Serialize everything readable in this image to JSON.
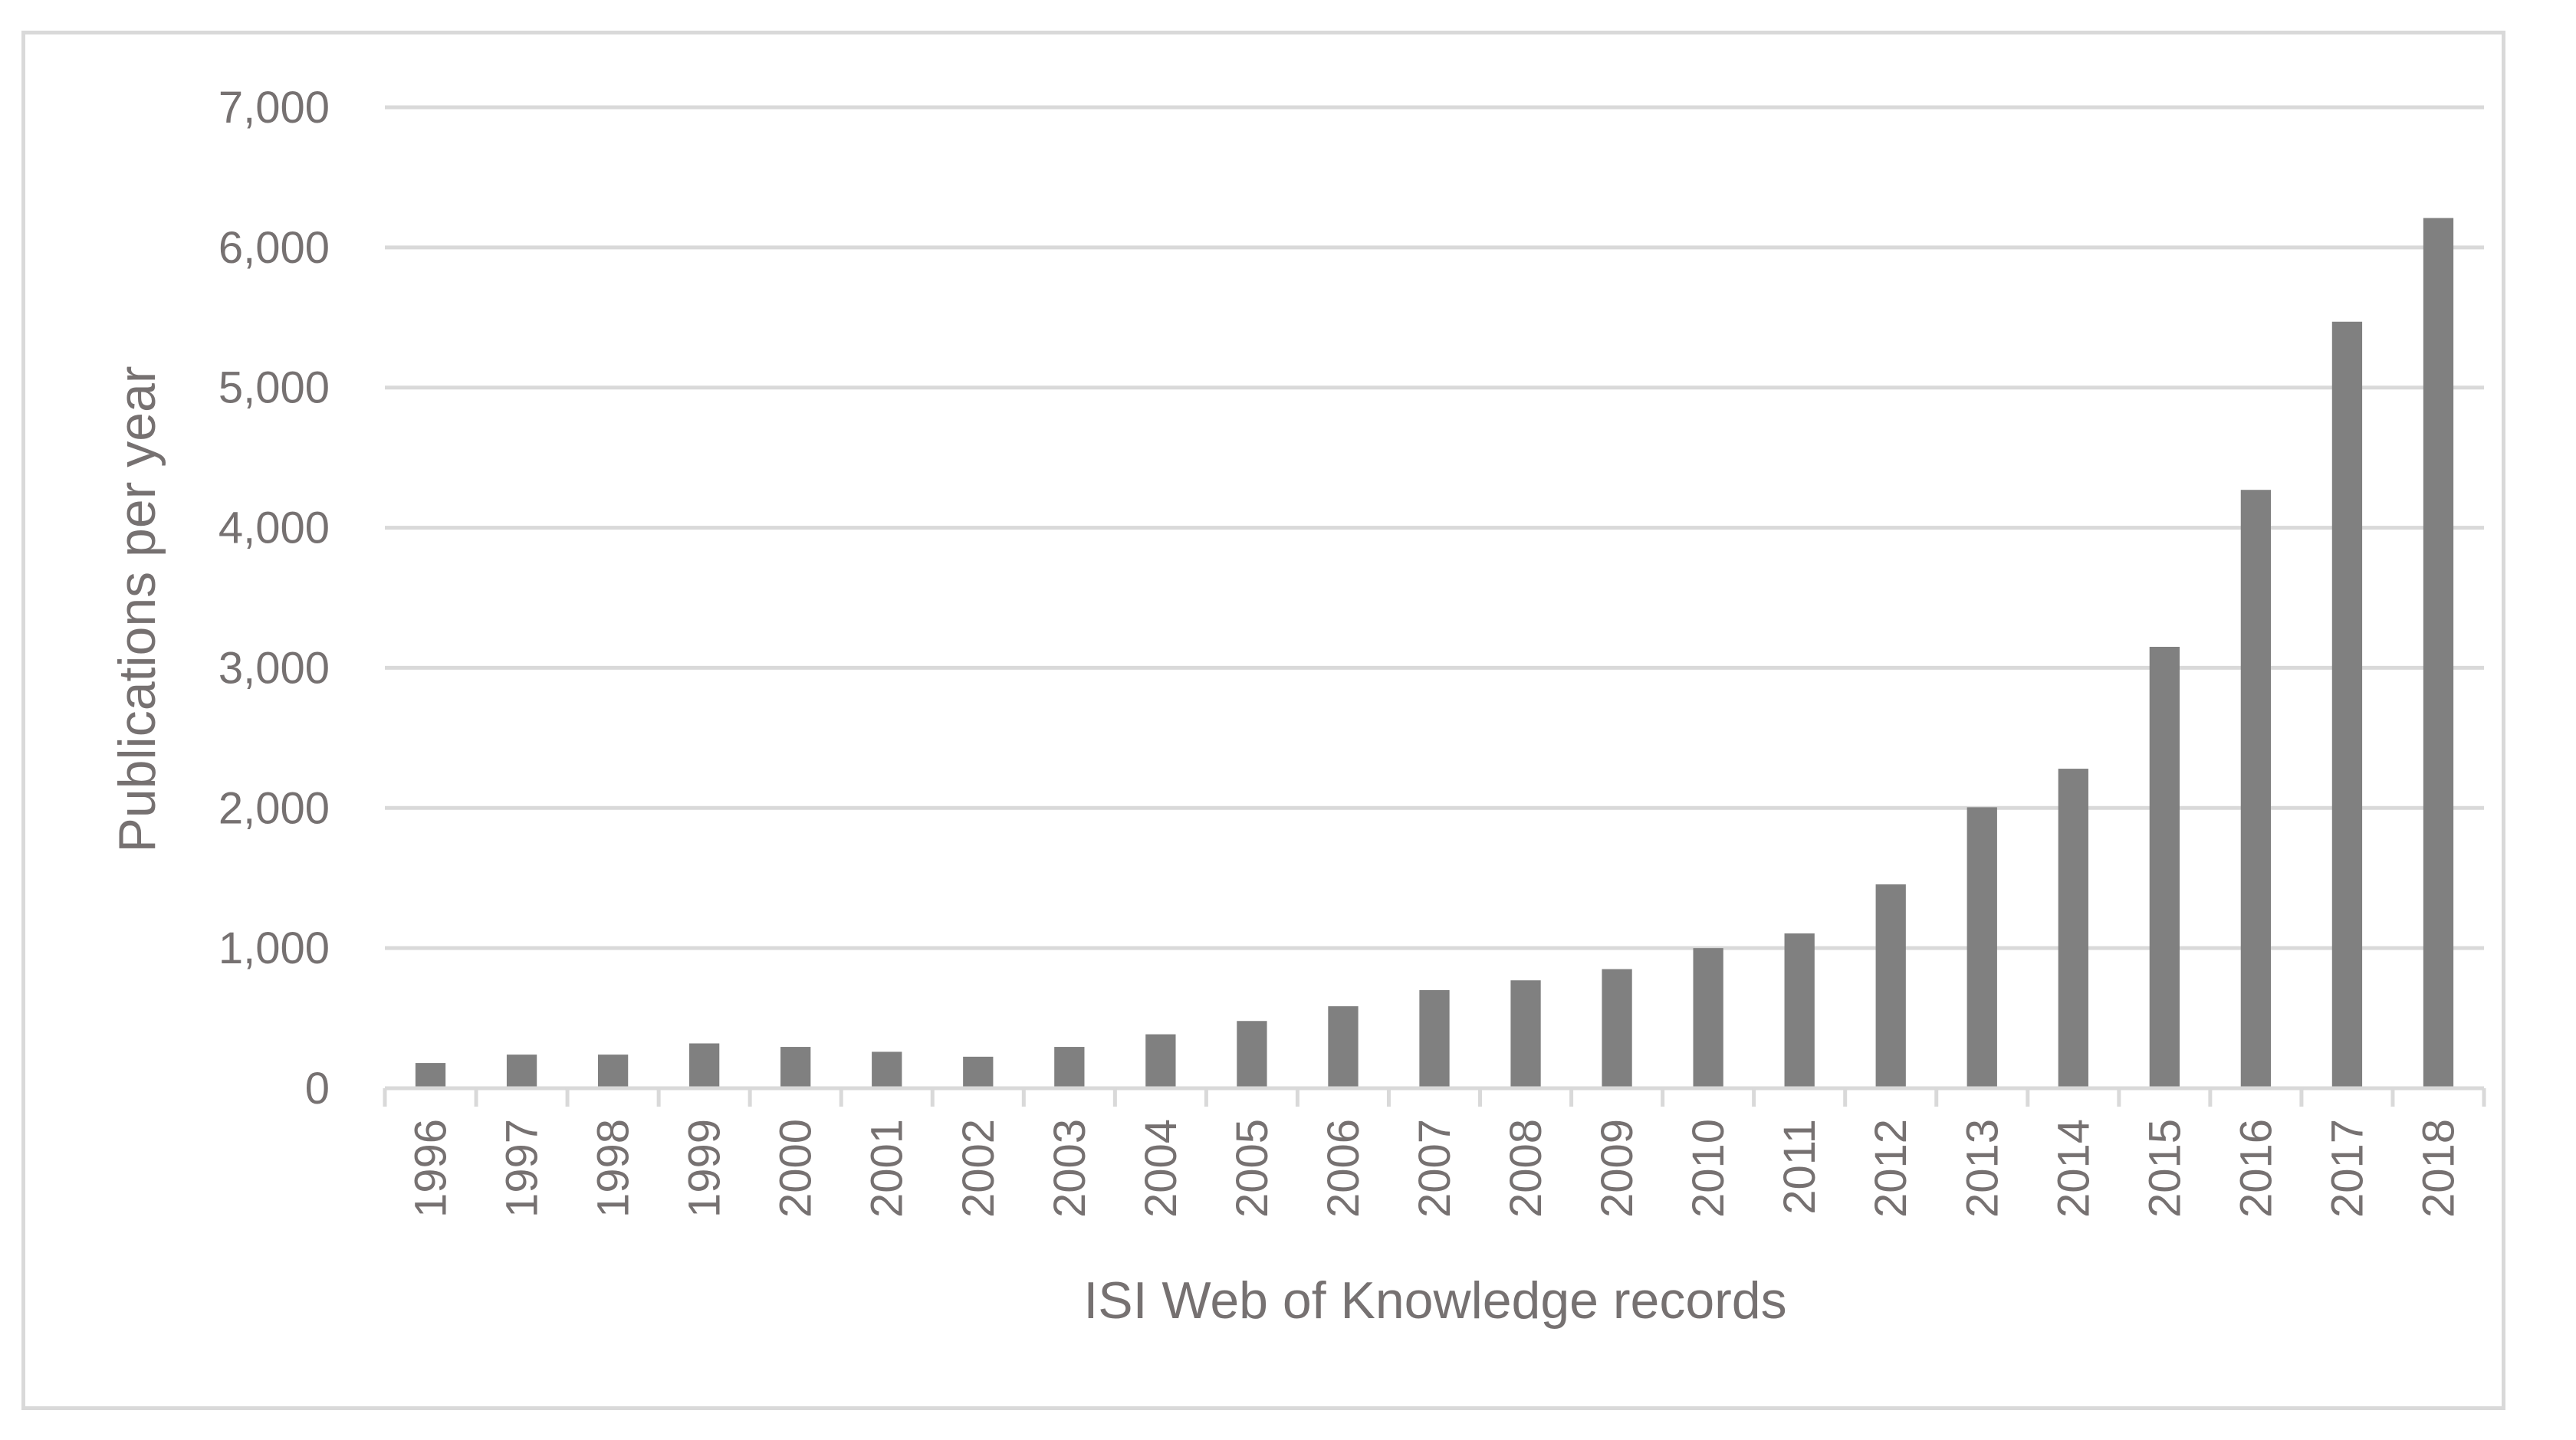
{
  "chart_data": {
    "type": "bar",
    "title": "",
    "xlabel": "ISI Web of Knowledge records",
    "ylabel": "Publications per year",
    "ylim": [
      0,
      7000
    ],
    "yticks": [
      0,
      1000,
      2000,
      3000,
      4000,
      5000,
      6000,
      7000
    ],
    "ytick_labels": [
      "0",
      "1,000",
      "2,000",
      "3,000",
      "4,000",
      "5,000",
      "6,000",
      "7,000"
    ],
    "grid": true,
    "legend": "none",
    "categories": [
      "1996",
      "1997",
      "1998",
      "1999",
      "2000",
      "2001",
      "2002",
      "2003",
      "2004",
      "2005",
      "2006",
      "2007",
      "2008",
      "2009",
      "2010",
      "2011",
      "2012",
      "2013",
      "2014",
      "2015",
      "2016",
      "2017",
      "2018"
    ],
    "series": [
      {
        "values": [
          180,
          240,
          240,
          320,
          295,
          260,
          225,
          295,
          385,
          480,
          585,
          700,
          770,
          850,
          1000,
          1105,
          1455,
          2005,
          2280,
          3150,
          4270,
          5470,
          6210
        ]
      }
    ],
    "colors": {
      "bar": "#808080",
      "grid": "#d9d9d9",
      "axis": "#d9d9d9",
      "text": "#767171",
      "frame": "#d9d9d9"
    }
  }
}
